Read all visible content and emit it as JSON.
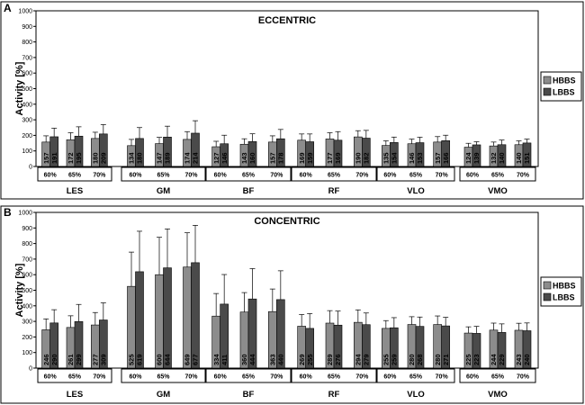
{
  "colors": {
    "hbbs": "#8c8c8c",
    "lbbs": "#4a4a4a",
    "frame": "#000000",
    "background": "#ffffff"
  },
  "chart_data": [
    {
      "type": "bar",
      "panel_letter": "A",
      "title": "ECCENTRIC",
      "ylabel": "Activity [%]",
      "ylim": [
        0,
        1000
      ],
      "yticks": [
        0,
        100,
        200,
        300,
        400,
        500,
        600,
        700,
        800,
        900,
        1000
      ],
      "grid": false,
      "legend_position": "right",
      "muscles": [
        "LES",
        "GM",
        "BF",
        "RF",
        "VLO",
        "VMO"
      ],
      "speeds": [
        "60%",
        "65%",
        "70%"
      ],
      "series": [
        {
          "name": "HBBS",
          "values": [
            157,
            172,
            180,
            134,
            147,
            174,
            127,
            143,
            157,
            169,
            177,
            190,
            135,
            146,
            157,
            124,
            132,
            140
          ],
          "errors": [
            40,
            45,
            40,
            40,
            40,
            50,
            35,
            35,
            40,
            40,
            40,
            40,
            30,
            30,
            35,
            25,
            25,
            25
          ]
        },
        {
          "name": "LBBS",
          "values": [
            191,
            195,
            209,
            180,
            189,
            214,
            146,
            160,
            178,
            159,
            169,
            182,
            154,
            153,
            166,
            139,
            140,
            151
          ],
          "errors": [
            55,
            60,
            60,
            70,
            70,
            80,
            55,
            50,
            60,
            50,
            55,
            50,
            35,
            35,
            35,
            20,
            30,
            25
          ]
        }
      ]
    },
    {
      "type": "bar",
      "panel_letter": "B",
      "title": "CONCENTRIC",
      "ylabel": "Activity [%]",
      "ylim": [
        0,
        1000
      ],
      "yticks": [
        0,
        100,
        200,
        300,
        400,
        500,
        600,
        700,
        800,
        900,
        1000
      ],
      "grid": false,
      "legend_position": "right",
      "muscles": [
        "LES",
        "GM",
        "BF",
        "RF",
        "VLO",
        "VMO"
      ],
      "speeds": [
        "60%",
        "65%",
        "70%"
      ],
      "series": [
        {
          "name": "HBBS",
          "values": [
            246,
            261,
            277,
            525,
            600,
            649,
            334,
            360,
            363,
            269,
            289,
            294,
            255,
            280,
            280,
            225,
            244,
            243
          ],
          "errors": [
            70,
            75,
            80,
            220,
            240,
            220,
            145,
            125,
            145,
            75,
            80,
            80,
            50,
            50,
            55,
            40,
            45,
            45
          ]
        },
        {
          "name": "LBBS",
          "values": [
            290,
            299,
            309,
            619,
            644,
            677,
            411,
            444,
            440,
            255,
            276,
            279,
            259,
            268,
            271,
            223,
            229,
            240
          ],
          "errors": [
            85,
            110,
            110,
            260,
            250,
            240,
            190,
            195,
            185,
            95,
            90,
            75,
            65,
            60,
            55,
            45,
            55,
            50
          ]
        }
      ]
    }
  ]
}
